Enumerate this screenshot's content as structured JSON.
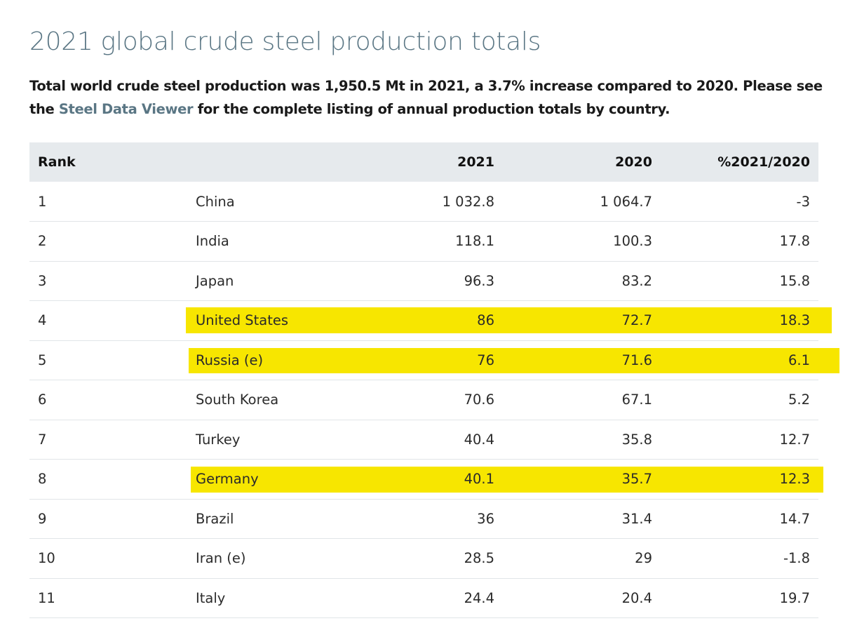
{
  "page": {
    "title": "2021 global crude steel production totals",
    "intro_before_link": "Total world crude steel production was 1,950.5 Mt in 2021, a 3.7% increase compared to 2020. Please see the ",
    "intro_link": "Steel Data Viewer",
    "intro_after_link": " for the complete listing of annual production totals by country."
  },
  "colors": {
    "title": "#5a7684",
    "link": "#5a7684",
    "header_bg": "#e6eaed",
    "highlight": "#f7e600"
  },
  "table": {
    "headers": [
      "Rank",
      "",
      "2021",
      "2020",
      "%2021/2020"
    ],
    "rows": [
      {
        "rank": "1",
        "country": "China",
        "y2021": "1 032.8",
        "y2020": "1 064.7",
        "change": "-3",
        "highlighted": false
      },
      {
        "rank": "2",
        "country": "India",
        "y2021": "118.1",
        "y2020": "100.3",
        "change": "17.8",
        "highlighted": false
      },
      {
        "rank": "3",
        "country": "Japan",
        "y2021": "96.3",
        "y2020": "83.2",
        "change": "15.8",
        "highlighted": false
      },
      {
        "rank": "4",
        "country": "United States",
        "y2021": "86",
        "y2020": "72.7",
        "change": "18.3",
        "highlighted": true
      },
      {
        "rank": "5",
        "country": "Russia (e)",
        "y2021": "76",
        "y2020": "71.6",
        "change": "6.1",
        "highlighted": true
      },
      {
        "rank": "6",
        "country": "South Korea",
        "y2021": "70.6",
        "y2020": "67.1",
        "change": "5.2",
        "highlighted": false
      },
      {
        "rank": "7",
        "country": "Turkey",
        "y2021": "40.4",
        "y2020": "35.8",
        "change": "12.7",
        "highlighted": false
      },
      {
        "rank": "8",
        "country": "Germany",
        "y2021": "40.1",
        "y2020": "35.7",
        "change": "12.3",
        "highlighted": true
      },
      {
        "rank": "9",
        "country": "Brazil",
        "y2021": "36",
        "y2020": "31.4",
        "change": "14.7",
        "highlighted": false
      },
      {
        "rank": "10",
        "country": "Iran (e)",
        "y2021": "28.5",
        "y2020": "29",
        "change": "-1.8",
        "highlighted": false
      },
      {
        "rank": "11",
        "country": "Italy",
        "y2021": "24.4",
        "y2020": "20.4",
        "change": "19.7",
        "highlighted": false
      }
    ]
  }
}
